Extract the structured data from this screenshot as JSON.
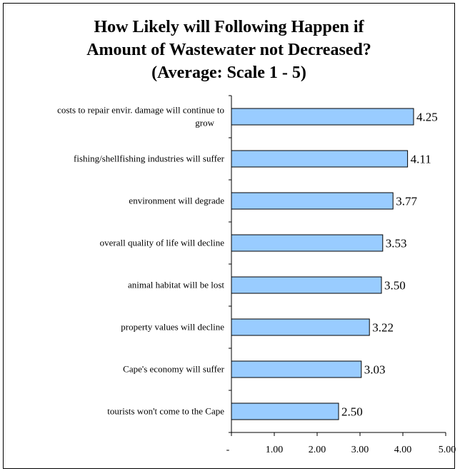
{
  "chart_data": {
    "type": "bar",
    "orientation": "horizontal",
    "title": [
      "How Likely will Following Happen if",
      "Amount of Wastewater not Decreased?",
      "(Average: Scale 1 - 5)"
    ],
    "categories": [
      [
        "costs to repair envir. damage  will continue to",
        "grow"
      ],
      [
        "fishing/shellfishing industries will suffer"
      ],
      [
        "environment will degrade"
      ],
      [
        "overall quality of life will decline"
      ],
      [
        "animal habitat will be lost"
      ],
      [
        "property values will decline"
      ],
      [
        "Cape's economy will suffer"
      ],
      [
        "tourists won't come to the Cape"
      ]
    ],
    "values": [
      4.25,
      4.11,
      3.77,
      3.53,
      3.5,
      3.22,
      3.03,
      2.5
    ],
    "data_labels": [
      "4.25",
      "4.11",
      "3.77",
      "3.53",
      "3.50",
      "3.22",
      "3.03",
      "2.50"
    ],
    "xlim": [
      0,
      5
    ],
    "x_ticks": [
      0,
      1,
      2,
      3,
      4,
      5
    ],
    "x_tick_labels": [
      "-",
      "1.00",
      "2.00",
      "3.00",
      "4.00",
      "5.00"
    ],
    "bar_color": "#99ccff",
    "bar_edge_color": "#000000",
    "grid": false,
    "legend": "none"
  }
}
